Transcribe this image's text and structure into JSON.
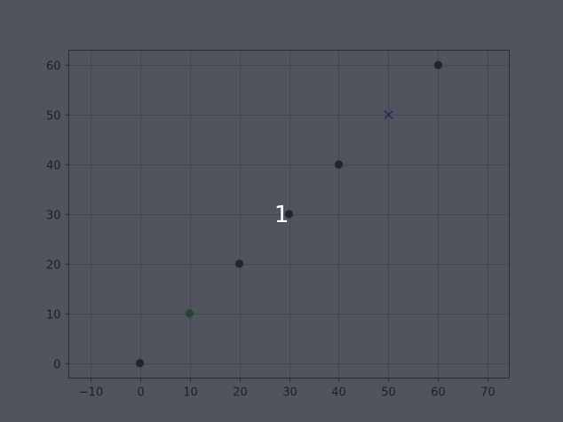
{
  "chart_data": {
    "type": "scatter",
    "title": "",
    "xlabel": "",
    "ylabel": "",
    "xlim": [
      -14.3,
      74.3
    ],
    "ylim": [
      -3,
      63
    ],
    "x_ticks": [
      -10,
      0,
      10,
      20,
      30,
      40,
      50,
      60,
      70
    ],
    "y_ticks": [
      0,
      10,
      20,
      30,
      40,
      50,
      60
    ],
    "x_tick_labels": [
      "−10",
      "0",
      "10",
      "20",
      "30",
      "40",
      "50",
      "60",
      "70"
    ],
    "y_tick_labels": [
      "0",
      "10",
      "20",
      "30",
      "40",
      "50",
      "60"
    ],
    "grid": true,
    "points": [
      {
        "x": 0,
        "y": 0,
        "marker": "circle",
        "color": "#23252c"
      },
      {
        "x": 10,
        "y": 10,
        "marker": "circle",
        "color": "#24452e"
      },
      {
        "x": 20,
        "y": 20,
        "marker": "circle",
        "color": "#23252c"
      },
      {
        "x": 30,
        "y": 30,
        "marker": "circle",
        "color": "#23252c"
      },
      {
        "x": 40,
        "y": 40,
        "marker": "circle",
        "color": "#23252c"
      },
      {
        "x": 50,
        "y": 50,
        "marker": "x",
        "color": "#27235a"
      },
      {
        "x": 60,
        "y": 60,
        "marker": "circle",
        "color": "#23252c"
      }
    ],
    "annotations": [
      {
        "text": "1",
        "x": 28.5,
        "y": 30
      }
    ],
    "colors": {
      "background": "#51545e",
      "grid": "#43464e",
      "axis": "#2a2c33",
      "text": "#1e1f24",
      "annotation": "#ffffff"
    }
  }
}
